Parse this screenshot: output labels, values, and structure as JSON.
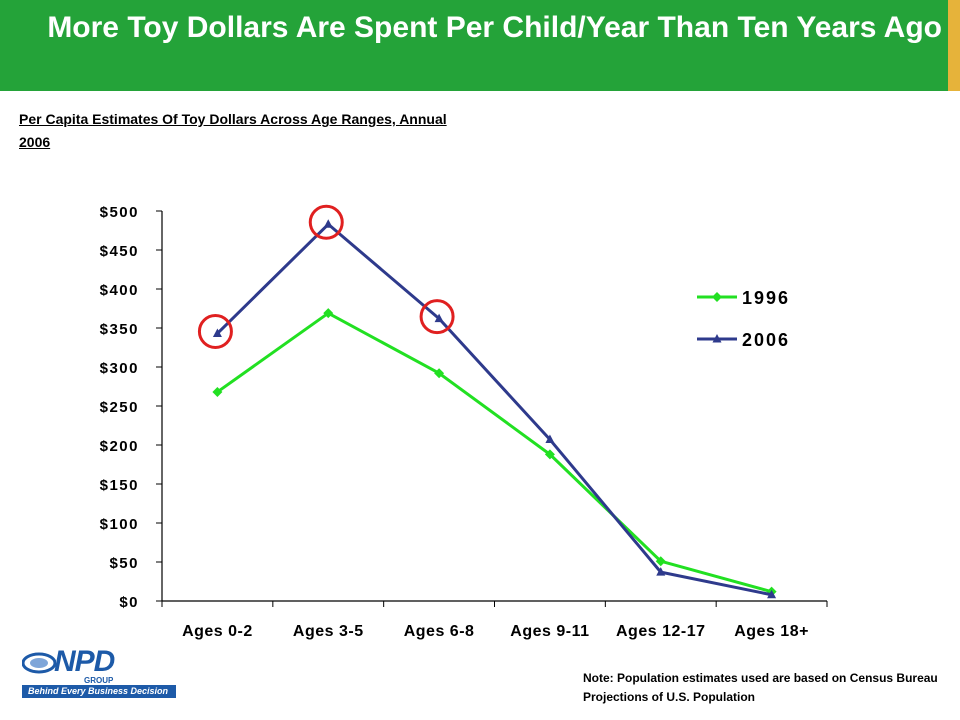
{
  "header": {
    "title": "More Toy Dollars Are Spent Per Child/Year Than Ten Years Ago",
    "accent_color": "#e6b33a",
    "background_color": "#24a339"
  },
  "subtitle": "Per Capita Estimates Of Toy Dollars Across Age Ranges, Annual 2006",
  "note": "Note: Population estimates used are based on Census Bureau Projections of U.S. Population",
  "logo": {
    "name": "NPD",
    "group": "GROUP",
    "tagline": "Behind Every Business Decision"
  },
  "chart_data": {
    "type": "line",
    "categories": [
      "Ages 0-2",
      "Ages 3-5",
      "Ages 6-8",
      "Ages 9-11",
      "Ages 12-17",
      "Ages 18+"
    ],
    "y_tick_labels": [
      "$0",
      "$50",
      "$100",
      "$150",
      "$200",
      "$250",
      "$300",
      "$350",
      "$400",
      "$450",
      "$500"
    ],
    "ylim": [
      0,
      500
    ],
    "series": [
      {
        "name": "1996",
        "color": "#22e022",
        "marker": "diamond",
        "values": [
          268,
          369,
          292,
          188,
          51,
          12
        ]
      },
      {
        "name": "2006",
        "color": "#2e3a8c",
        "marker": "triangle",
        "values": [
          343,
          483,
          362,
          207,
          37,
          8
        ]
      }
    ],
    "highlight_color": "#e02020",
    "highlighted_points": [
      {
        "series": "2006",
        "category": "Ages 0-2"
      },
      {
        "series": "2006",
        "category": "Ages 3-5"
      },
      {
        "series": "2006",
        "category": "Ages 6-8"
      }
    ],
    "legend_position": "right",
    "grid": false
  }
}
